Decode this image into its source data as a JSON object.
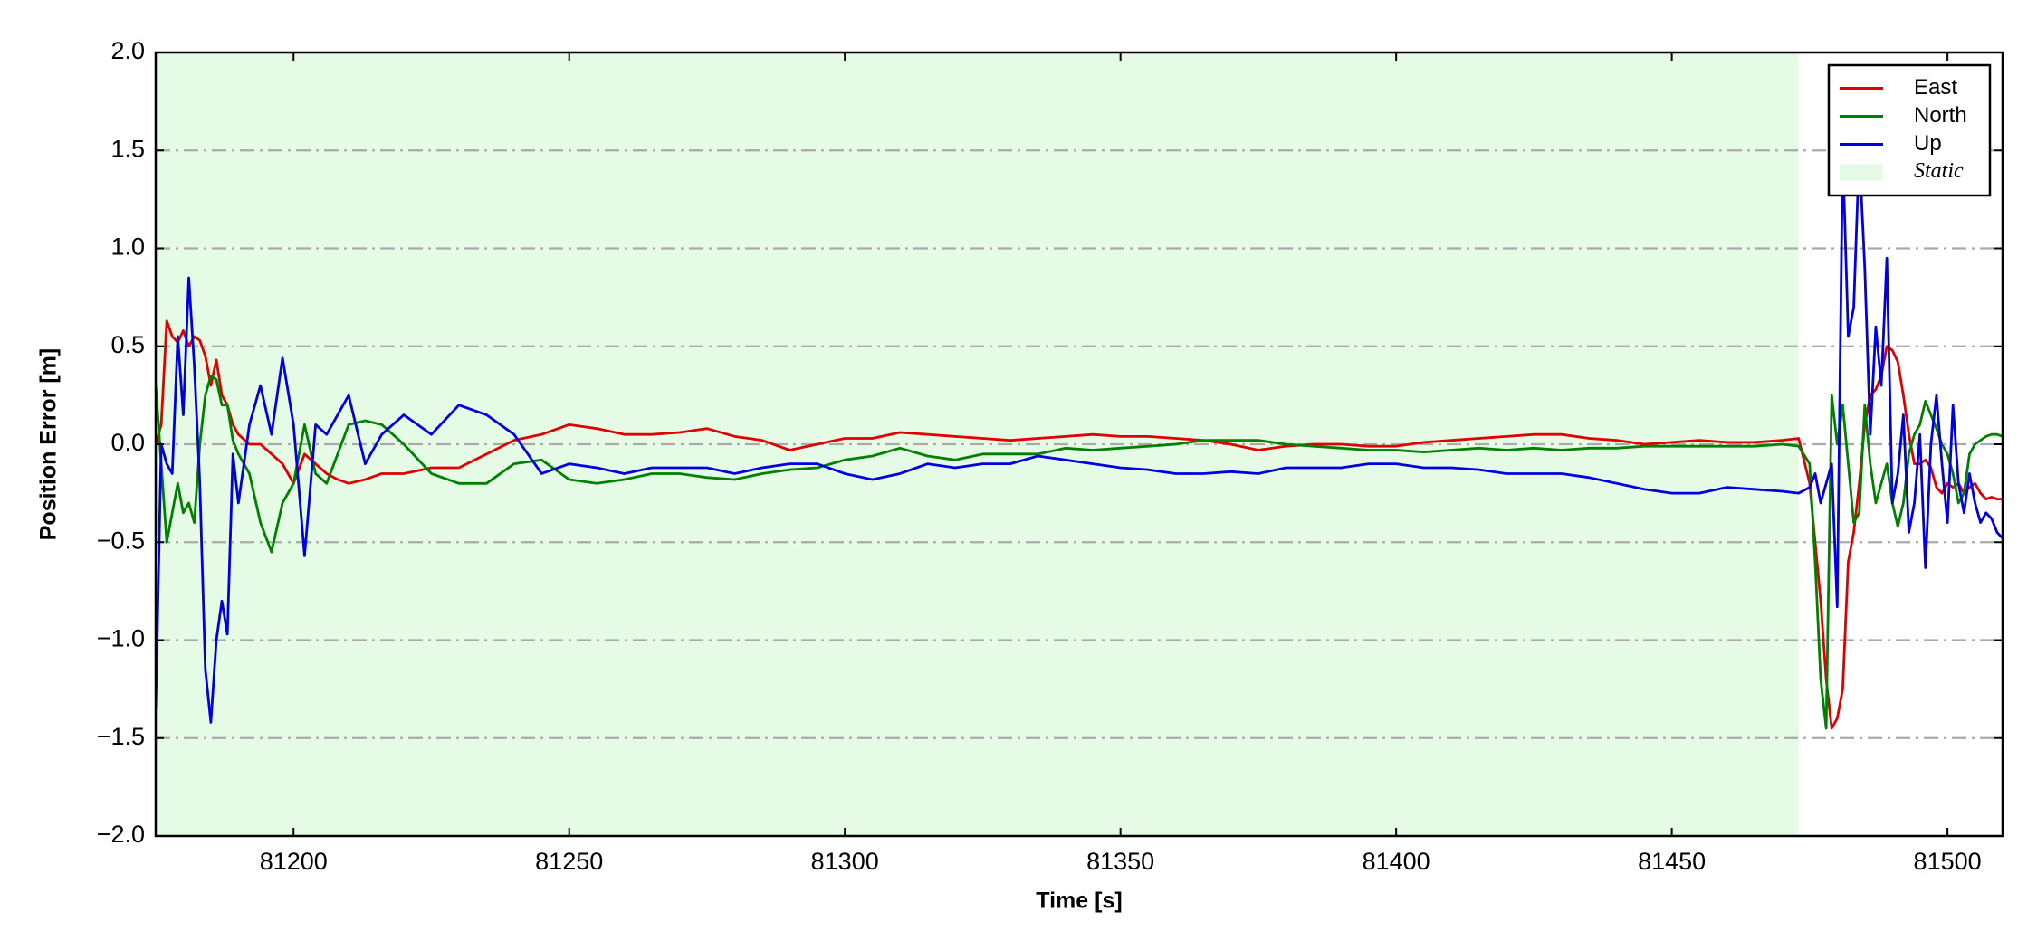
{
  "chart_data": {
    "type": "line",
    "xlabel": "Time [s]",
    "ylabel": "Position Error [m]",
    "xlim": [
      81175,
      81510
    ],
    "ylim": [
      -2,
      2
    ],
    "xticks": [
      81200,
      81250,
      81300,
      81350,
      81400,
      81450,
      81500
    ],
    "yticks": [
      {
        "value": -2,
        "label": "−2.0"
      },
      {
        "value": -1.5,
        "label": "−1.5"
      },
      {
        "value": -1,
        "label": "−1.0"
      },
      {
        "value": -0.5,
        "label": "−0.5"
      },
      {
        "value": 0,
        "label": "0.0"
      },
      0.5,
      {
        "value": 1,
        "label": "1.0"
      },
      1.5,
      {
        "value": 2,
        "label": "2.0"
      }
    ],
    "grid": true,
    "legend": "upper right",
    "shaded": {
      "name": "Static",
      "color": "#e6fbe6",
      "x": [
        81175,
        81473
      ]
    },
    "x": [
      81175,
      81176,
      81177,
      81178,
      81179,
      81180,
      81181,
      81182,
      81183,
      81184,
      81185,
      81186,
      81187,
      81188,
      81189,
      81190,
      81192,
      81194,
      81196,
      81198,
      81200,
      81202,
      81204,
      81206,
      81208,
      81210,
      81213,
      81216,
      81220,
      81225,
      81230,
      81235,
      81240,
      81245,
      81250,
      81255,
      81260,
      81265,
      81270,
      81275,
      81280,
      81285,
      81290,
      81295,
      81300,
      81305,
      81310,
      81315,
      81320,
      81325,
      81330,
      81335,
      81340,
      81345,
      81350,
      81355,
      81360,
      81365,
      81370,
      81375,
      81380,
      81385,
      81390,
      81395,
      81400,
      81405,
      81410,
      81415,
      81420,
      81425,
      81430,
      81435,
      81440,
      81445,
      81450,
      81455,
      81460,
      81465,
      81470,
      81473,
      81475,
      81476,
      81477,
      81478,
      81479,
      81480,
      81481,
      81482,
      81483,
      81484,
      81485,
      81486,
      81487,
      81488,
      81489,
      81490,
      81491,
      81492,
      81493,
      81494,
      81495,
      81496,
      81497,
      81498,
      81499,
      81500,
      81501,
      81502,
      81503,
      81504,
      81505,
      81506,
      81507,
      81508,
      81509,
      81510
    ],
    "series": [
      {
        "name": "East",
        "color": "#e00000",
        "values": [
          0.0,
          0.1,
          0.63,
          0.55,
          0.52,
          0.58,
          0.5,
          0.55,
          0.53,
          0.45,
          0.3,
          0.43,
          0.25,
          0.2,
          0.1,
          0.05,
          0.0,
          0.0,
          -0.05,
          -0.1,
          -0.2,
          -0.05,
          -0.1,
          -0.15,
          -0.18,
          -0.2,
          -0.18,
          -0.15,
          -0.15,
          -0.12,
          -0.12,
          -0.05,
          0.02,
          0.05,
          0.1,
          0.08,
          0.05,
          0.05,
          0.06,
          0.08,
          0.04,
          0.02,
          -0.03,
          0.0,
          0.03,
          0.03,
          0.06,
          0.05,
          0.04,
          0.03,
          0.02,
          0.03,
          0.04,
          0.05,
          0.04,
          0.04,
          0.03,
          0.02,
          0.0,
          -0.03,
          -0.01,
          0.0,
          0.0,
          -0.01,
          -0.01,
          0.01,
          0.02,
          0.03,
          0.04,
          0.05,
          0.05,
          0.03,
          0.02,
          0.0,
          0.01,
          0.02,
          0.01,
          0.01,
          0.02,
          0.03,
          -0.2,
          -0.5,
          -0.8,
          -1.2,
          -1.45,
          -1.4,
          -1.25,
          -0.6,
          -0.45,
          -0.2,
          0.1,
          0.25,
          0.28,
          0.35,
          0.5,
          0.48,
          0.42,
          0.25,
          0.05,
          -0.1,
          -0.1,
          -0.08,
          -0.12,
          -0.22,
          -0.25,
          -0.2,
          -0.22,
          -0.2,
          -0.25,
          -0.22,
          -0.2,
          -0.25,
          -0.28,
          -0.27,
          -0.28,
          -0.28
        ]
      },
      {
        "name": "North",
        "color": "#008000",
        "values": [
          0.3,
          -0.1,
          -0.5,
          -0.35,
          -0.2,
          -0.35,
          -0.3,
          -0.4,
          0.0,
          0.25,
          0.35,
          0.33,
          0.2,
          0.2,
          0.02,
          -0.05,
          -0.15,
          -0.4,
          -0.55,
          -0.3,
          -0.2,
          0.1,
          -0.15,
          -0.2,
          -0.05,
          0.1,
          0.12,
          0.1,
          0.0,
          -0.15,
          -0.2,
          -0.2,
          -0.1,
          -0.08,
          -0.18,
          -0.2,
          -0.18,
          -0.15,
          -0.15,
          -0.17,
          -0.18,
          -0.15,
          -0.13,
          -0.12,
          -0.08,
          -0.06,
          -0.02,
          -0.06,
          -0.08,
          -0.05,
          -0.05,
          -0.05,
          -0.02,
          -0.03,
          -0.02,
          -0.01,
          0.0,
          0.02,
          0.02,
          0.02,
          0.0,
          -0.01,
          -0.02,
          -0.03,
          -0.03,
          -0.04,
          -0.03,
          -0.02,
          -0.03,
          -0.02,
          -0.03,
          -0.02,
          -0.02,
          -0.01,
          -0.01,
          -0.01,
          -0.01,
          -0.01,
          0.0,
          -0.01,
          -0.1,
          -0.6,
          -1.2,
          -1.45,
          0.25,
          0.0,
          0.2,
          -0.1,
          -0.4,
          -0.35,
          0.2,
          -0.1,
          -0.3,
          -0.2,
          -0.1,
          -0.3,
          -0.42,
          -0.3,
          -0.05,
          0.05,
          0.1,
          0.22,
          0.15,
          0.08,
          0.0,
          -0.05,
          -0.15,
          -0.3,
          -0.25,
          -0.05,
          0.0,
          0.02,
          0.04,
          0.05,
          0.05,
          0.04
        ]
      },
      {
        "name": "Up",
        "color": "#0000e0",
        "values": [
          -1.35,
          0.0,
          -0.1,
          -0.15,
          0.55,
          0.15,
          0.85,
          0.4,
          -0.2,
          -1.15,
          -1.42,
          -1.0,
          -0.8,
          -0.97,
          -0.05,
          -0.3,
          0.1,
          0.3,
          0.05,
          0.44,
          0.1,
          -0.57,
          0.1,
          0.05,
          0.15,
          0.25,
          -0.1,
          0.05,
          0.15,
          0.05,
          0.2,
          0.15,
          0.05,
          -0.15,
          -0.1,
          -0.12,
          -0.15,
          -0.12,
          -0.12,
          -0.12,
          -0.15,
          -0.12,
          -0.1,
          -0.1,
          -0.15,
          -0.18,
          -0.15,
          -0.1,
          -0.12,
          -0.1,
          -0.1,
          -0.06,
          -0.08,
          -0.1,
          -0.12,
          -0.13,
          -0.15,
          -0.15,
          -0.14,
          -0.15,
          -0.12,
          -0.12,
          -0.12,
          -0.1,
          -0.1,
          -0.12,
          -0.12,
          -0.13,
          -0.15,
          -0.15,
          -0.15,
          -0.17,
          -0.2,
          -0.23,
          -0.25,
          -0.25,
          -0.22,
          -0.23,
          -0.24,
          -0.25,
          -0.22,
          -0.15,
          -0.3,
          -0.2,
          -0.1,
          -0.83,
          1.5,
          0.55,
          0.7,
          1.5,
          0.9,
          0.05,
          0.6,
          0.3,
          0.95,
          -0.3,
          -0.15,
          0.15,
          -0.45,
          -0.3,
          0.05,
          -0.63,
          0.0,
          0.25,
          -0.1,
          -0.4,
          0.2,
          -0.2,
          -0.35,
          -0.15,
          -0.3,
          -0.4,
          -0.35,
          -0.38,
          -0.45,
          -0.48
        ]
      }
    ]
  }
}
